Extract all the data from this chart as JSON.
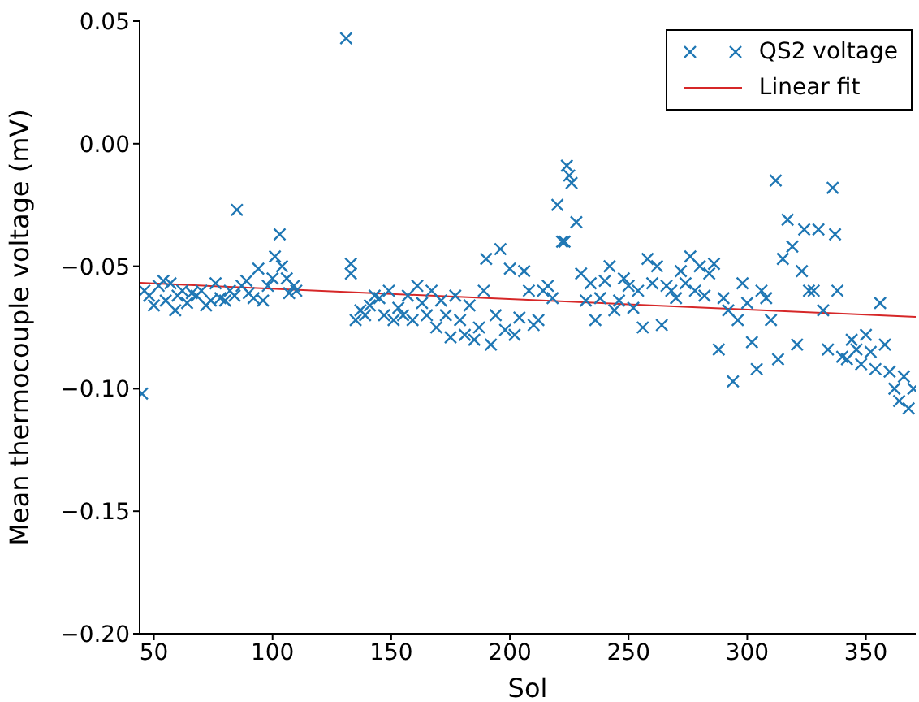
{
  "chart_data": {
    "type": "scatter",
    "xlabel": "Sol",
    "ylabel": "Mean thermocouple voltage (mV)",
    "xlim": [
      44,
      371
    ],
    "xticks": [
      50,
      100,
      150,
      200,
      250,
      300,
      350
    ],
    "ylim": [
      -0.2,
      0.05
    ],
    "yticks": [
      {
        "value": 0.05,
        "label": "0.05"
      },
      {
        "value": 0,
        "label": "0.00"
      },
      {
        "value": -0.05,
        "label": "−0.05"
      },
      {
        "value": -0.1,
        "label": "−0.10"
      },
      {
        "value": -0.15,
        "label": "−0.15"
      },
      {
        "value": -0.2,
        "label": "−0.20"
      }
    ],
    "legend": "top right",
    "grid": false,
    "series": [
      {
        "name": "QS2 voltage",
        "type": "scatter",
        "marker": "cross",
        "color": "#1f77b4",
        "x": [
          45,
          46,
          48,
          50,
          52,
          54,
          55,
          57,
          59,
          60,
          62,
          64,
          66,
          68,
          70,
          72,
          74,
          76,
          78,
          80,
          82,
          84,
          85,
          87,
          89,
          90,
          92,
          94,
          96,
          98,
          100,
          101,
          103,
          104,
          106,
          107,
          109,
          110,
          131,
          133,
          133,
          135,
          137,
          139,
          141,
          143,
          145,
          147,
          149,
          151,
          153,
          155,
          157,
          159,
          161,
          163,
          165,
          167,
          169,
          171,
          173,
          175,
          177,
          179,
          181,
          183,
          185,
          187,
          189,
          190,
          192,
          194,
          196,
          198,
          200,
          202,
          204,
          206,
          208,
          210,
          212,
          214,
          216,
          218,
          220,
          222,
          223,
          224,
          225,
          226,
          228,
          230,
          232,
          234,
          236,
          238,
          240,
          242,
          244,
          246,
          248,
          250,
          252,
          254,
          256,
          258,
          260,
          262,
          264,
          266,
          268,
          270,
          272,
          274,
          276,
          278,
          280,
          282,
          284,
          286,
          288,
          290,
          292,
          294,
          296,
          298,
          300,
          302,
          304,
          306,
          308,
          310,
          312,
          313,
          315,
          317,
          319,
          321,
          323,
          324,
          326,
          328,
          330,
          332,
          334,
          336,
          337,
          338,
          340,
          342,
          344,
          346,
          348,
          350,
          352,
          354,
          356,
          358,
          360,
          362,
          364,
          366,
          368,
          370
        ],
        "values": [
          -0.102,
          -0.06,
          -0.062,
          -0.066,
          -0.058,
          -0.056,
          -0.064,
          -0.057,
          -0.068,
          -0.062,
          -0.06,
          -0.065,
          -0.061,
          -0.062,
          -0.06,
          -0.066,
          -0.064,
          -0.057,
          -0.063,
          -0.064,
          -0.06,
          -0.062,
          -0.027,
          -0.058,
          -0.056,
          -0.061,
          -0.063,
          -0.051,
          -0.064,
          -0.058,
          -0.055,
          -0.046,
          -0.037,
          -0.05,
          -0.055,
          -0.061,
          -0.058,
          -0.06,
          0.043,
          -0.049,
          -0.053,
          -0.072,
          -0.068,
          -0.07,
          -0.066,
          -0.062,
          -0.063,
          -0.07,
          -0.06,
          -0.072,
          -0.067,
          -0.07,
          -0.062,
          -0.072,
          -0.058,
          -0.065,
          -0.07,
          -0.06,
          -0.075,
          -0.064,
          -0.07,
          -0.079,
          -0.062,
          -0.072,
          -0.078,
          -0.066,
          -0.08,
          -0.075,
          -0.06,
          -0.047,
          -0.082,
          -0.07,
          -0.043,
          -0.076,
          -0.051,
          -0.078,
          -0.071,
          -0.052,
          -0.06,
          -0.074,
          -0.072,
          -0.06,
          -0.058,
          -0.063,
          -0.025,
          -0.04,
          -0.04,
          -0.009,
          -0.013,
          -0.016,
          -0.032,
          -0.053,
          -0.064,
          -0.057,
          -0.072,
          -0.063,
          -0.056,
          -0.05,
          -0.068,
          -0.064,
          -0.055,
          -0.058,
          -0.067,
          -0.06,
          -0.075,
          -0.047,
          -0.057,
          -0.05,
          -0.074,
          -0.058,
          -0.06,
          -0.063,
          -0.052,
          -0.057,
          -0.046,
          -0.06,
          -0.05,
          -0.062,
          -0.053,
          -0.049,
          -0.084,
          -0.063,
          -0.068,
          -0.097,
          -0.072,
          -0.057,
          -0.065,
          -0.081,
          -0.092,
          -0.06,
          -0.063,
          -0.072,
          -0.015,
          -0.088,
          -0.047,
          -0.031,
          -0.042,
          -0.082,
          -0.052,
          -0.035,
          -0.06,
          -0.06,
          -0.035,
          -0.068,
          -0.084,
          -0.018,
          -0.037,
          -0.06,
          -0.087,
          -0.088,
          -0.08,
          -0.084,
          -0.09,
          -0.078,
          -0.085,
          -0.092,
          -0.065,
          -0.082,
          -0.093,
          -0.1,
          -0.105,
          -0.095,
          -0.108,
          -0.1
        ]
      },
      {
        "name": "Linear fit",
        "type": "line",
        "color": "#d62728",
        "x": [
          44,
          371
        ],
        "values": [
          -0.0568,
          -0.0707
        ]
      }
    ]
  }
}
